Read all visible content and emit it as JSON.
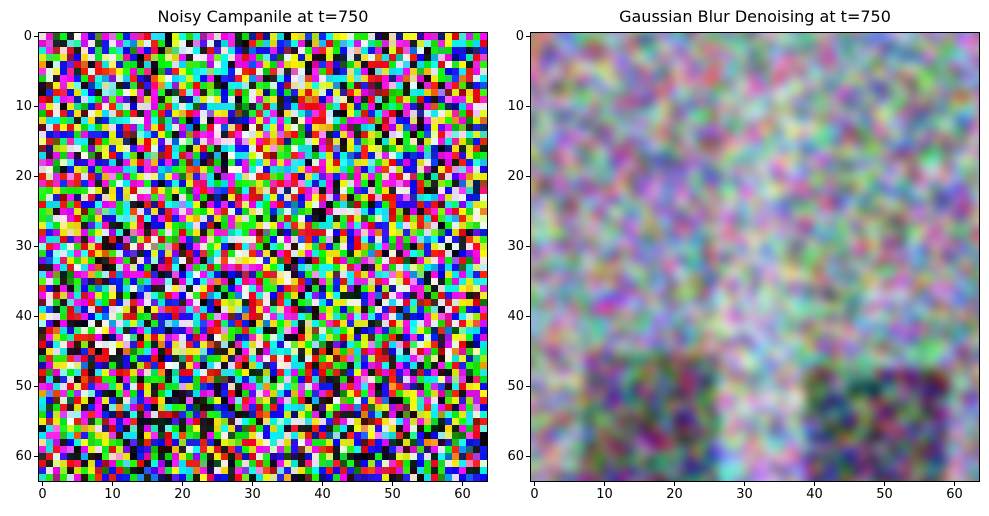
{
  "panels": [
    {
      "id": "left",
      "title": "Noisy Campanile at t=750",
      "style": "noise",
      "x_ticks": [
        "0",
        "10",
        "20",
        "30",
        "40",
        "50",
        "60"
      ],
      "y_ticks": [
        "0",
        "10",
        "20",
        "30",
        "40",
        "50",
        "60"
      ]
    },
    {
      "id": "right",
      "title": "Gaussian Blur Denoising at t=750",
      "style": "blur",
      "x_ticks": [
        "0",
        "10",
        "20",
        "30",
        "40",
        "50",
        "60"
      ],
      "y_ticks": [
        "0",
        "10",
        "20",
        "30",
        "40",
        "50",
        "60"
      ]
    }
  ],
  "image_grid": {
    "width": 64,
    "height": 64
  }
}
